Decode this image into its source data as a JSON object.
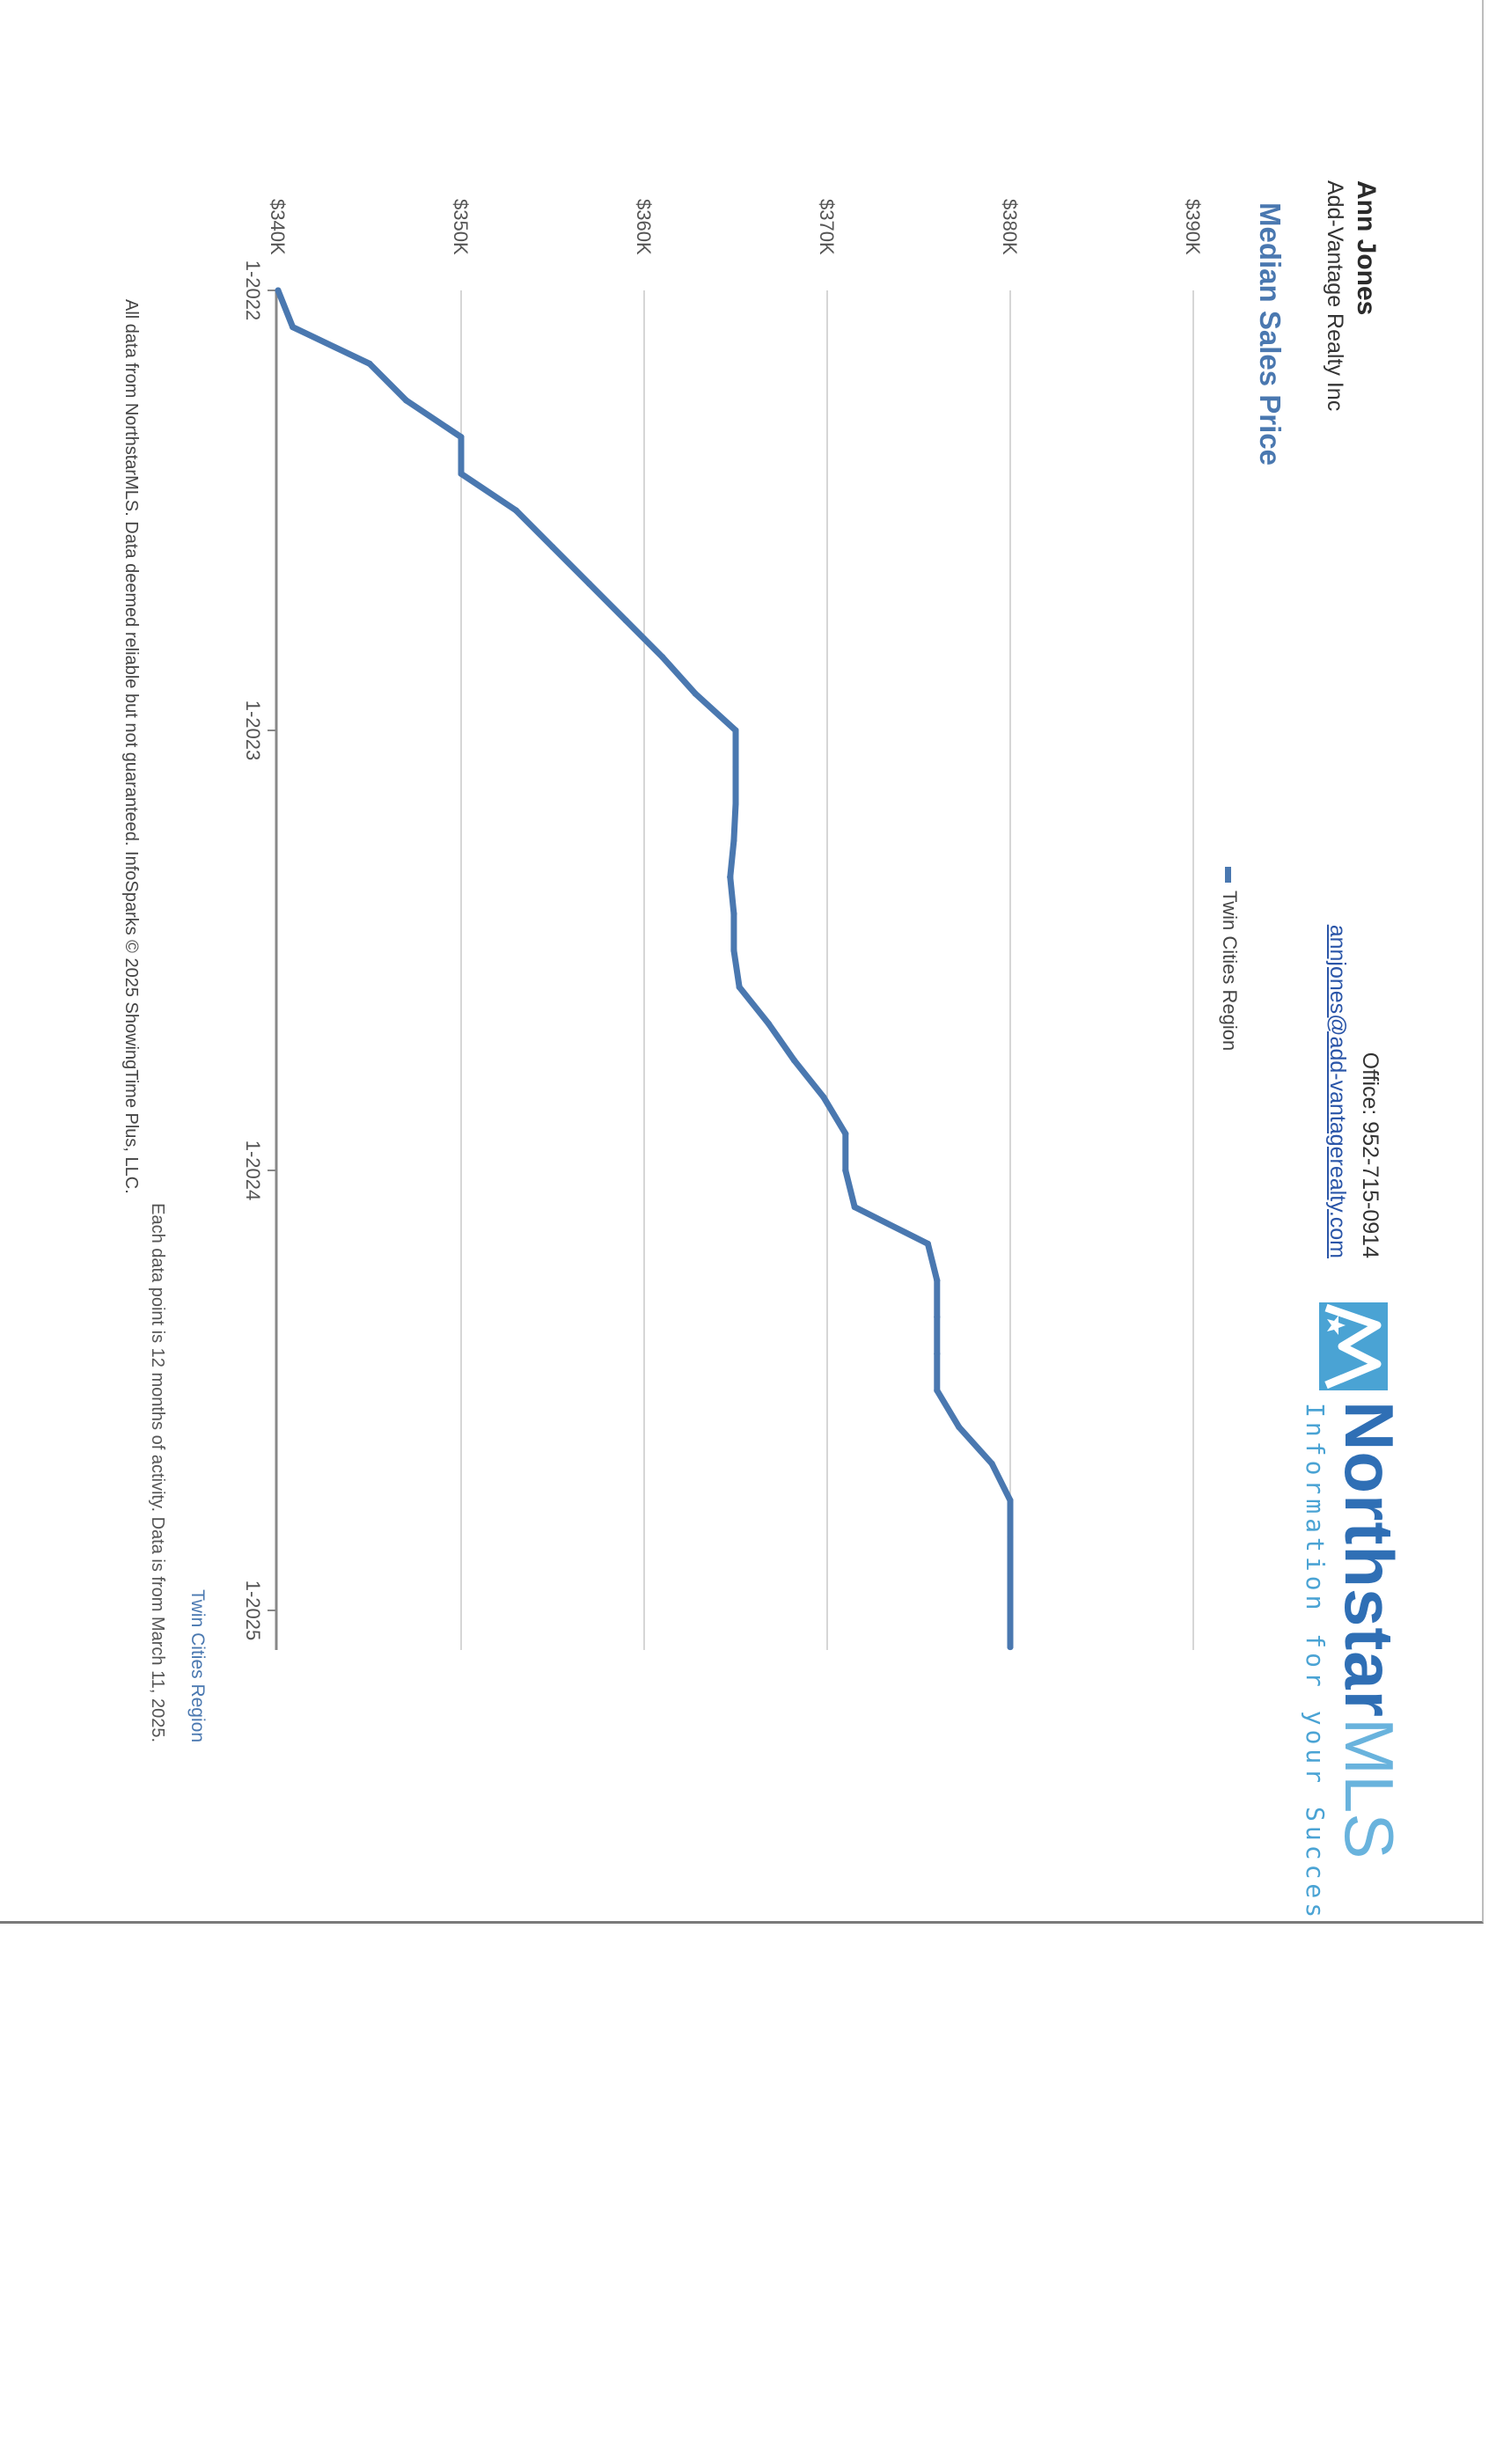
{
  "agent": {
    "name": "Ann Jones",
    "company": "Add-Vantage Realty Inc",
    "office": "Office: 952-715-0914",
    "email": "annjones@add-vantagerealty.com"
  },
  "logo": {
    "brand": "Northstar",
    "brand_suffix": "MLS",
    "tagline": "Information for your Success",
    "icon": "northstar-logo-icon"
  },
  "colors": {
    "series": "#4a78b0",
    "logo_dark": "#2f6fb5",
    "logo_light": "#69b3dd"
  },
  "chart_data": {
    "type": "line",
    "title": "Median Sales Price",
    "y_ticks": [
      "$340K",
      "$350K",
      "$360K",
      "$370K",
      "$380K",
      "$390K"
    ],
    "x_ticks": [
      "1-2022",
      "1-2023",
      "1-2024",
      "1-2025"
    ],
    "ylim": [
      340,
      390
    ],
    "grid": true,
    "legend_position": "top",
    "series": [
      {
        "name": "Twin Cities Region",
        "x": [
          "2022-01",
          "2022-02",
          "2022-03",
          "2022-04",
          "2022-05",
          "2022-06",
          "2022-07",
          "2022-08",
          "2022-09",
          "2022-10",
          "2022-11",
          "2022-12",
          "2023-01",
          "2023-02",
          "2023-03",
          "2023-04",
          "2023-05",
          "2023-06",
          "2023-07",
          "2023-08",
          "2023-09",
          "2023-10",
          "2023-11",
          "2023-12",
          "2024-01",
          "2024-02",
          "2024-03",
          "2024-04",
          "2024-05",
          "2024-06",
          "2024-07",
          "2024-08",
          "2024-09",
          "2024-10",
          "2024-11",
          "2024-12",
          "2025-01",
          "2025-02"
        ],
        "values": [
          340.0,
          340.8,
          345.0,
          347.0,
          350.0,
          350.0,
          353.0,
          355.0,
          357.0,
          359.0,
          361.0,
          362.8,
          365.0,
          365.0,
          365.0,
          364.9,
          364.7,
          364.9,
          364.9,
          365.2,
          366.8,
          368.2,
          369.8,
          371.0,
          371.0,
          371.5,
          375.5,
          376.0,
          376.0,
          376.0,
          376.0,
          377.2,
          379.0,
          380.0,
          380.0,
          380.0,
          380.0,
          380.0
        ]
      }
    ],
    "note": "Each data point is 12 months of activity. Data is from March 11, 2025.",
    "region_label": "Twin Cities Region"
  },
  "footer": "All data from NorthstarMLS. Data deemed reliable but not guaranteed. InfoSparks © 2025 ShowingTime Plus, LLC."
}
